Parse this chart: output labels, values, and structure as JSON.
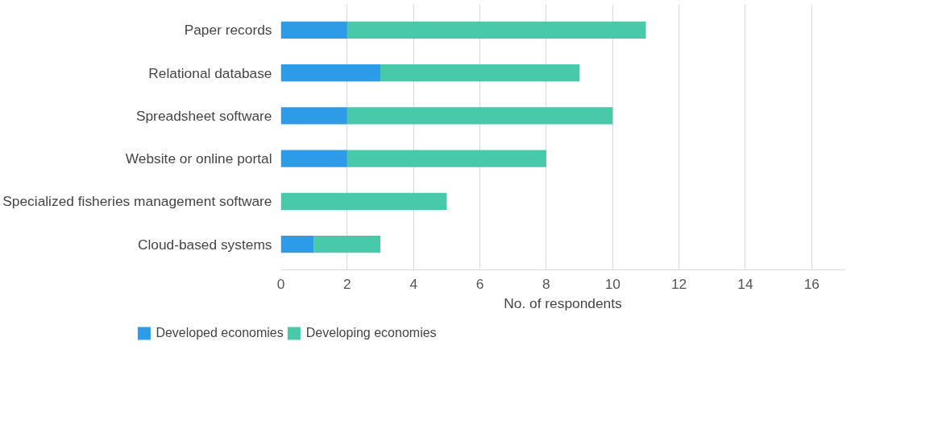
{
  "chart_data": {
    "type": "bar",
    "orientation": "horizontal",
    "stacked": true,
    "categories": [
      "Paper records",
      "Relational database",
      "Spreadsheet software",
      "Website or online portal",
      "Specialized fisheries management software",
      "Cloud-based systems"
    ],
    "series": [
      {
        "name": "Developed economies",
        "color": "#2e9be8",
        "values": [
          2,
          3,
          2,
          2,
          0,
          1
        ]
      },
      {
        "name": "Developing economies",
        "color": "#48c9a9",
        "values": [
          9,
          6,
          8,
          6,
          5,
          2
        ]
      }
    ],
    "xlabel": "No. of respondents",
    "xlim": [
      0,
      17
    ],
    "xticks": [
      0,
      2,
      4,
      6,
      8,
      10,
      12,
      14,
      16
    ],
    "grid": "x",
    "legend": "bottom"
  }
}
